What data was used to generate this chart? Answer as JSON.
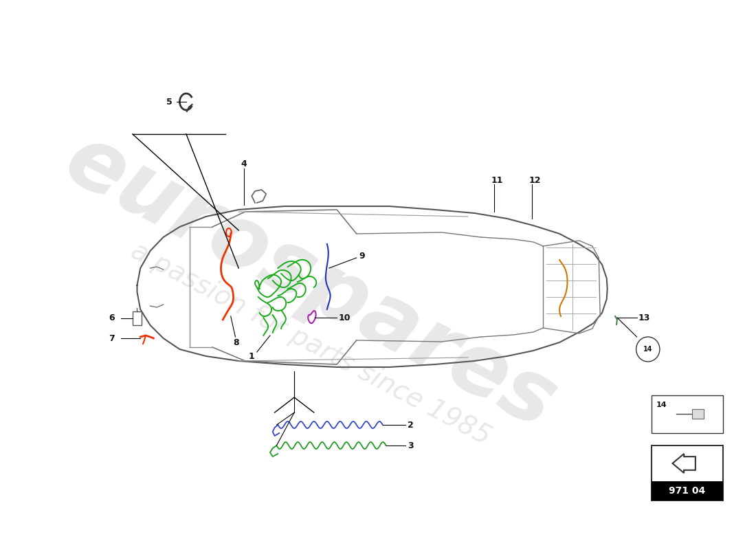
{
  "bg_color": "#ffffff",
  "watermark_color": "#cccccc",
  "line_color": "#555555",
  "car_outline_color": "#666666",
  "car_fill_color": "#f2f2f2",
  "label_fontsize": 9,
  "wiring_colors": {
    "green_main": "#1aaa1a",
    "red_orange": "#ee3300",
    "blue": "#2233bb",
    "purple": "#aa22aa",
    "orange_rear": "#cc7700",
    "blue2": "#3344cc",
    "green2": "#229922"
  },
  "page_code": "971 04"
}
